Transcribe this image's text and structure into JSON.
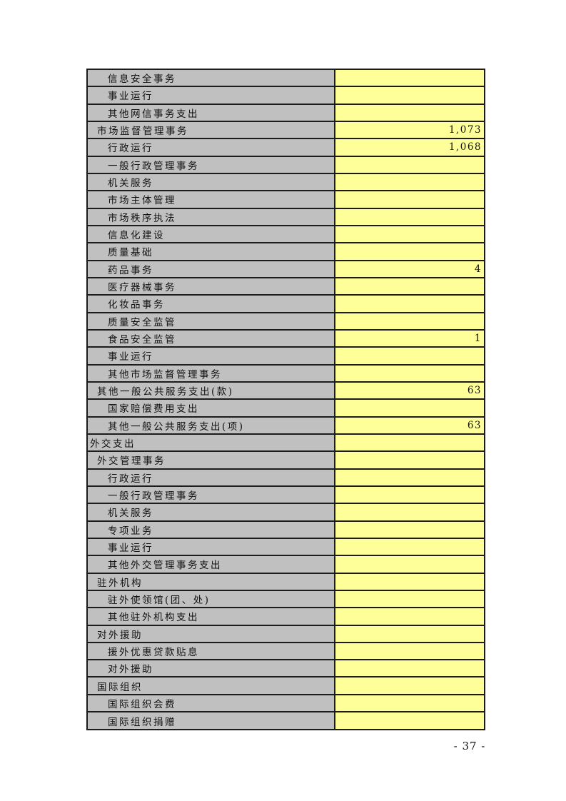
{
  "colors": {
    "label_bg": "#c0c0c0",
    "value_bg": "#ffff99",
    "grid": "#1c1c1c",
    "page_bg": "#ffffff"
  },
  "page": {
    "number_label": "- 37 -"
  },
  "table": {
    "columns": [
      "expenditure-item",
      "amount"
    ],
    "rows": [
      {
        "label": "信息安全事务",
        "indent": 2,
        "value": ""
      },
      {
        "label": "事业运行",
        "indent": 2,
        "value": ""
      },
      {
        "label": "其他网信事务支出",
        "indent": 2,
        "value": ""
      },
      {
        "label": "市场监督管理事务",
        "indent": 1,
        "value": "1,073"
      },
      {
        "label": "行政运行",
        "indent": 2,
        "value": "1,068"
      },
      {
        "label": "一般行政管理事务",
        "indent": 2,
        "value": ""
      },
      {
        "label": "机关服务",
        "indent": 2,
        "value": ""
      },
      {
        "label": "市场主体管理",
        "indent": 2,
        "value": ""
      },
      {
        "label": "市场秩序执法",
        "indent": 2,
        "value": ""
      },
      {
        "label": "信息化建设",
        "indent": 2,
        "value": ""
      },
      {
        "label": "质量基础",
        "indent": 2,
        "value": ""
      },
      {
        "label": "药品事务",
        "indent": 2,
        "value": "4"
      },
      {
        "label": "医疗器械事务",
        "indent": 2,
        "value": ""
      },
      {
        "label": "化妆品事务",
        "indent": 2,
        "value": ""
      },
      {
        "label": "质量安全监管",
        "indent": 2,
        "value": ""
      },
      {
        "label": "食品安全监管",
        "indent": 2,
        "value": "1"
      },
      {
        "label": "事业运行",
        "indent": 2,
        "value": ""
      },
      {
        "label": "其他市场监督管理事务",
        "indent": 2,
        "value": ""
      },
      {
        "label": "其他一般公共服务支出(款)",
        "indent": 1,
        "value": "63"
      },
      {
        "label": "国家赔偿费用支出",
        "indent": 2,
        "value": ""
      },
      {
        "label": "其他一般公共服务支出(项)",
        "indent": 2,
        "value": "63"
      },
      {
        "label": "外交支出",
        "indent": 0,
        "value": ""
      },
      {
        "label": "外交管理事务",
        "indent": 1,
        "value": ""
      },
      {
        "label": "行政运行",
        "indent": 2,
        "value": ""
      },
      {
        "label": "一般行政管理事务",
        "indent": 2,
        "value": ""
      },
      {
        "label": "机关服务",
        "indent": 2,
        "value": ""
      },
      {
        "label": "专项业务",
        "indent": 2,
        "value": ""
      },
      {
        "label": "事业运行",
        "indent": 2,
        "value": ""
      },
      {
        "label": "其他外交管理事务支出",
        "indent": 2,
        "value": ""
      },
      {
        "label": "驻外机构",
        "indent": 1,
        "value": ""
      },
      {
        "label": "驻外使领馆(团、处)",
        "indent": 2,
        "value": ""
      },
      {
        "label": "其他驻外机构支出",
        "indent": 2,
        "value": ""
      },
      {
        "label": "对外援助",
        "indent": 1,
        "value": ""
      },
      {
        "label": "援外优惠贷款贴息",
        "indent": 2,
        "value": ""
      },
      {
        "label": "对外援助",
        "indent": 2,
        "value": ""
      },
      {
        "label": "国际组织",
        "indent": 1,
        "value": ""
      },
      {
        "label": "国际组织会费",
        "indent": 2,
        "value": ""
      },
      {
        "label": "国际组织捐赠",
        "indent": 2,
        "value": ""
      }
    ]
  }
}
